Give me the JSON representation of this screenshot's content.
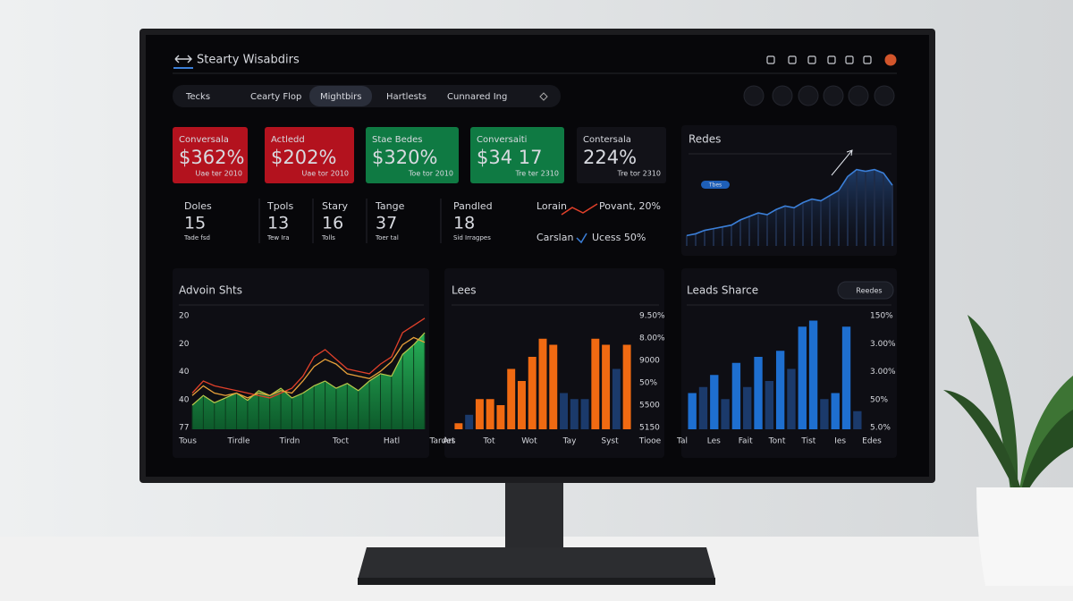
{
  "header": {
    "title": "Stearty Wisabdirs"
  },
  "tabs": [
    "Tecks",
    "Cearty Flop",
    "Mightbirs",
    "Hartlests",
    "Cunnared Ing"
  ],
  "kpis": [
    {
      "label": "Conversala",
      "value": "$362%",
      "note": "Uae ter 2010",
      "color": "#b3121e"
    },
    {
      "label": "Actledd",
      "value": "$202%",
      "note": "Uae tor 2010",
      "color": "#b3121e"
    },
    {
      "label": "Stae Bedes",
      "value": "$320%",
      "note": "Toe tor 2010",
      "color": "#0f7a43"
    },
    {
      "label": "Conversaiti",
      "value": "$34 17",
      "note": "Tre ter 2310",
      "color": "#0f7a43"
    },
    {
      "label": "Contersala",
      "value": "224%",
      "note": "Tre tor 2310",
      "color": "#121218"
    }
  ],
  "stats": [
    {
      "label": "Doles",
      "value": "15",
      "note": "Tade fsd"
    },
    {
      "label": "Tpols",
      "value": "13",
      "note": "Tew Ira"
    },
    {
      "label": "Stary",
      "value": "16",
      "note": "Tolls"
    },
    {
      "label": "Tange",
      "value": "37",
      "note": "Toer tal"
    },
    {
      "label": "Pandled",
      "value": "18",
      "note": "Sid Irragpes"
    }
  ],
  "legend": [
    {
      "name": "Lorain",
      "text": "Povant, 20%"
    },
    {
      "name": "Carslan",
      "text": "Ucess 50%"
    }
  ],
  "charts": [
    {
      "title": "Redes",
      "tag": "Tbes",
      "color": "#3b7fd8",
      "ylim": [
        0,
        100
      ],
      "values": [
        12,
        14,
        18,
        20,
        22,
        24,
        30,
        34,
        38,
        36,
        42,
        46,
        44,
        50,
        54,
        52,
        58,
        64,
        80,
        88,
        86,
        88,
        84,
        70
      ]
    },
    {
      "title": "Advoin Shts",
      "ylim": [
        0,
        100
      ],
      "y_labels": [
        "20",
        "20",
        "40",
        "40",
        "77"
      ],
      "x_labels": [
        "Tous",
        "Tirdle",
        "Tirdn",
        "Toct",
        "Hatl",
        "Tardes"
      ],
      "area": {
        "color": "#1f9a4c",
        "values": [
          20,
          28,
          22,
          26,
          30,
          24,
          32,
          28,
          34,
          26,
          30,
          36,
          40,
          34,
          38,
          32,
          40,
          46,
          44,
          62,
          70,
          80
        ]
      },
      "lines": [
        {
          "color": "#e0402a",
          "values": [
            30,
            40,
            36,
            34,
            32,
            30,
            28,
            26,
            30,
            34,
            44,
            60,
            66,
            58,
            50,
            48,
            46,
            54,
            60,
            80,
            86,
            92
          ]
        },
        {
          "color": "#e8a13a",
          "values": [
            28,
            36,
            30,
            28,
            30,
            26,
            30,
            28,
            32,
            30,
            40,
            52,
            58,
            54,
            46,
            44,
            42,
            48,
            56,
            70,
            76,
            72
          ]
        }
      ]
    },
    {
      "title": "Lees",
      "ylim": [
        0,
        100
      ],
      "y_labels": [
        "9.50%",
        "8.00%",
        "9000",
        "50%",
        "5500",
        "5150"
      ],
      "x_labels": [
        "Art",
        "Tot",
        "Wot",
        "Tay",
        "Syst",
        "Tiooe"
      ],
      "values": [
        5,
        12,
        25,
        25,
        20,
        50,
        40,
        60,
        75,
        70,
        30,
        25,
        25,
        75,
        70,
        50,
        70
      ],
      "colors": [
        "#f06a12",
        "#1b3a6b",
        "#f06a12",
        "#f06a12",
        "#f06a12",
        "#f06a12",
        "#f06a12",
        "#f06a12",
        "#f06a12",
        "#f06a12",
        "#1b3a6b",
        "#1b3a6b",
        "#1b3a6b",
        "#f06a12",
        "#f06a12",
        "#1b3a6b",
        "#f06a12"
      ]
    },
    {
      "title": "Leads Sharce",
      "button": "Reedes",
      "ylim": [
        0,
        100
      ],
      "y_labels": [
        "150%",
        "3.00%",
        "3.00%",
        "50%",
        "5.0%"
      ],
      "x_labels": [
        "Tal",
        "Les",
        "Fait",
        "Tont",
        "Tist",
        "Ies",
        "Edes"
      ],
      "values": [
        30,
        35,
        45,
        25,
        55,
        35,
        60,
        40,
        65,
        50,
        85,
        90,
        25,
        30,
        85,
        15
      ],
      "colors": [
        "#1e6fd0",
        "#1b3a6b",
        "#1e6fd0",
        "#1b3a6b",
        "#1e6fd0",
        "#1b3a6b",
        "#1e6fd0",
        "#1b3a6b",
        "#1e6fd0",
        "#1b3a6b",
        "#1e6fd0",
        "#1e6fd0",
        "#1b3a6b",
        "#1e6fd0",
        "#1e6fd0",
        "#1b3a6b"
      ]
    }
  ]
}
